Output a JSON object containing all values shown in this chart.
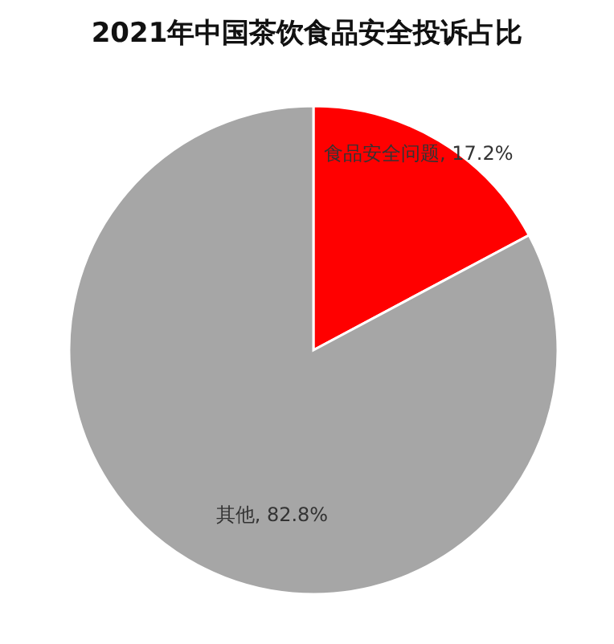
{
  "chart_data": {
    "type": "pie",
    "title": "2021年中国茶饮食品安全投诉占比",
    "categories": [
      "食品安全问题",
      "其他"
    ],
    "values": [
      17.2,
      82.8
    ],
    "value_labels": [
      "17.2%",
      "82.8%"
    ],
    "colors": [
      "#ff0000",
      "#a6a6a6"
    ],
    "legend": false
  }
}
